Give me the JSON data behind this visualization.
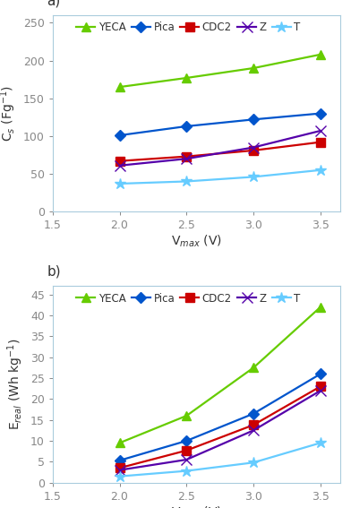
{
  "x": [
    2,
    2.5,
    3,
    3.5
  ],
  "panel_a": {
    "title": "a)",
    "ylabel": "C$_s$ (Fg$^{-1}$)",
    "xlabel": "V$_{max}$ (V)",
    "ylim": [
      0,
      260
    ],
    "yticks": [
      0,
      50,
      100,
      150,
      200,
      250
    ],
    "xlim": [
      1.5,
      3.65
    ],
    "xticks": [
      1.5,
      2.0,
      2.5,
      3.0,
      3.5
    ],
    "series": {
      "YECA": {
        "values": [
          165,
          177,
          190,
          208
        ],
        "color": "#66cc00",
        "marker": "^",
        "markersize": 7
      },
      "Pica": {
        "values": [
          101,
          113,
          122,
          130
        ],
        "color": "#0055cc",
        "marker": "D",
        "markersize": 6
      },
      "CDC2": {
        "values": [
          67,
          73,
          81,
          92
        ],
        "color": "#cc0000",
        "marker": "s",
        "markersize": 7
      },
      "Z": {
        "values": [
          61,
          70,
          85,
          107
        ],
        "color": "#5500aa",
        "marker": "x",
        "markersize": 8
      },
      "T": {
        "values": [
          37,
          40,
          46,
          55
        ],
        "color": "#66ccff",
        "marker": "*",
        "markersize": 9
      }
    }
  },
  "panel_b": {
    "title": "b)",
    "ylabel": "E$_{real}$ (Wh kg$^{-1}$)",
    "xlabel": "V$_{max}$ (V)",
    "ylim": [
      0,
      47
    ],
    "yticks": [
      0,
      5,
      10,
      15,
      20,
      25,
      30,
      35,
      40,
      45
    ],
    "xlim": [
      1.5,
      3.65
    ],
    "xticks": [
      1.5,
      2.0,
      2.5,
      3.0,
      3.5
    ],
    "series": {
      "YECA": {
        "values": [
          9.5,
          16.0,
          27.5,
          42.0
        ],
        "color": "#66cc00",
        "marker": "^",
        "markersize": 7
      },
      "Pica": {
        "values": [
          5.3,
          10.0,
          16.5,
          26.0
        ],
        "color": "#0055cc",
        "marker": "D",
        "markersize": 6
      },
      "CDC2": {
        "values": [
          3.5,
          7.7,
          13.8,
          23.0
        ],
        "color": "#cc0000",
        "marker": "s",
        "markersize": 7
      },
      "Z": {
        "values": [
          3.0,
          5.5,
          12.5,
          22.0
        ],
        "color": "#5500aa",
        "marker": "x",
        "markersize": 8
      },
      "T": {
        "values": [
          1.5,
          2.8,
          4.8,
          9.5
        ],
        "color": "#66ccff",
        "marker": "*",
        "markersize": 9
      }
    }
  },
  "linewidth": 1.6,
  "spine_color": "#aaccdd",
  "tick_color": "#888888",
  "label_color": "#333333",
  "legend_fontsize": 8.5,
  "axis_label_fontsize": 10,
  "tick_fontsize": 9,
  "title_fontsize": 11
}
